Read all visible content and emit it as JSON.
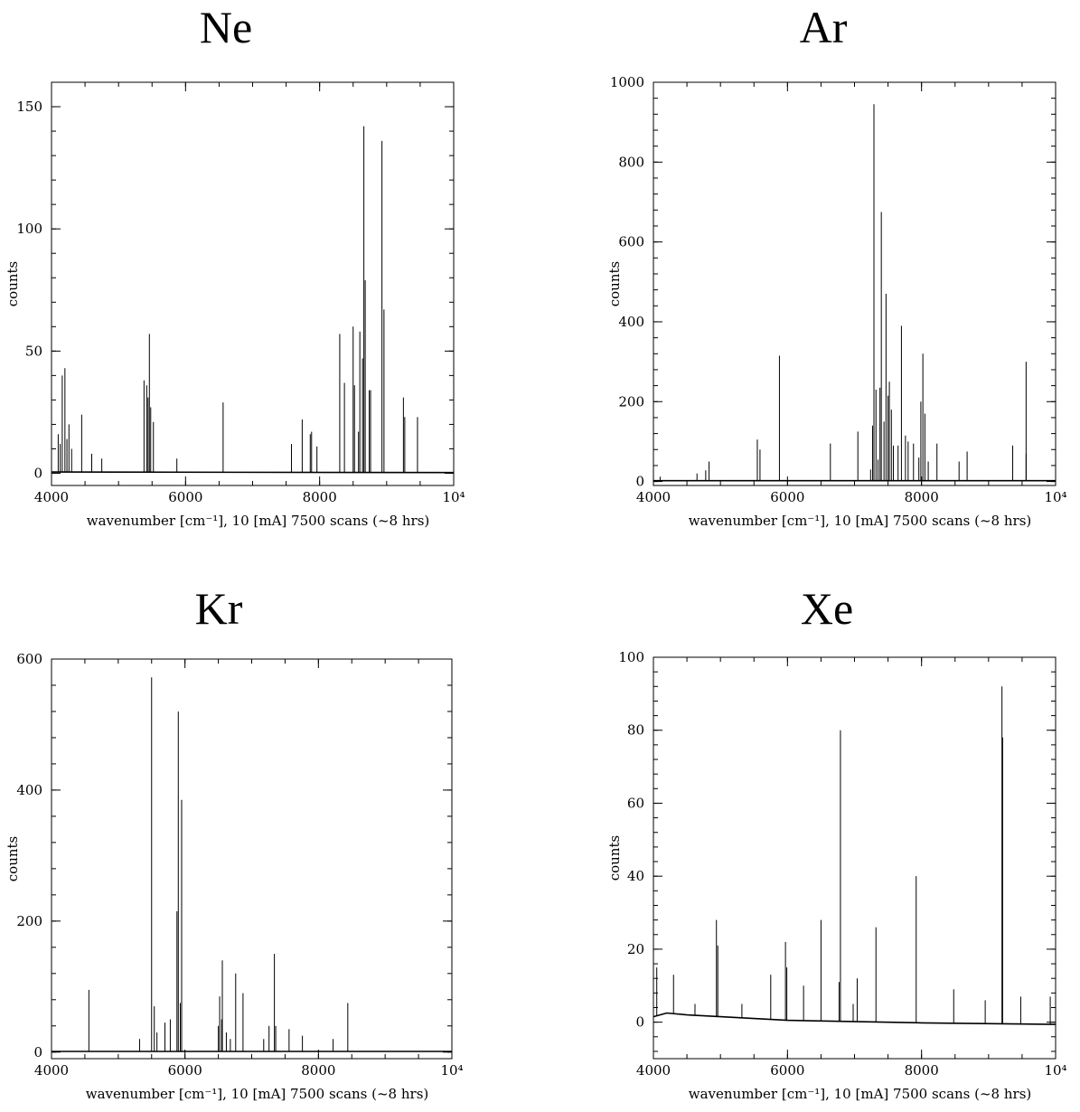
{
  "chart_data": [
    {
      "type": "line",
      "title": "Ne",
      "xlabel": "wavenumber [cm⁻¹], 10 [mA] 7500 scans (~8 hrs)",
      "ylabel": "counts",
      "xlim": [
        4000,
        10000
      ],
      "ylim": [
        -5,
        160
      ],
      "x_ticks": [
        4000,
        6000,
        8000,
        10000
      ],
      "x_tick_labels": [
        "4000",
        "6000",
        "8000",
        "10⁴"
      ],
      "y_ticks": [
        0,
        50,
        100,
        150
      ],
      "y_tick_labels": [
        "0",
        "50",
        "100",
        "150"
      ],
      "baseline": [
        [
          4000,
          0.5
        ],
        [
          10000,
          0.3
        ]
      ],
      "lines": [
        [
          4100,
          16
        ],
        [
          4130,
          12
        ],
        [
          4160,
          40
        ],
        [
          4200,
          43
        ],
        [
          4230,
          14
        ],
        [
          4260,
          20
        ],
        [
          4300,
          10
        ],
        [
          4450,
          24
        ],
        [
          4600,
          8
        ],
        [
          4750,
          6
        ],
        [
          5380,
          38
        ],
        [
          5420,
          36
        ],
        [
          5440,
          31
        ],
        [
          5460,
          57
        ],
        [
          5480,
          27
        ],
        [
          5520,
          21
        ],
        [
          5870,
          6
        ],
        [
          6560,
          29
        ],
        [
          7580,
          12
        ],
        [
          7740,
          22
        ],
        [
          7860,
          16
        ],
        [
          7880,
          17
        ],
        [
          7960,
          11
        ],
        [
          8300,
          57
        ],
        [
          8370,
          37
        ],
        [
          8500,
          60
        ],
        [
          8520,
          36
        ],
        [
          8580,
          17
        ],
        [
          8600,
          58
        ],
        [
          8640,
          47
        ],
        [
          8660,
          142
        ],
        [
          8680,
          79
        ],
        [
          8740,
          34
        ],
        [
          8760,
          34
        ],
        [
          8930,
          136
        ],
        [
          8960,
          67
        ],
        [
          9250,
          31
        ],
        [
          9270,
          23
        ],
        [
          9460,
          23
        ]
      ],
      "grid": false
    },
    {
      "type": "line",
      "title": "Ar",
      "xlabel": "wavenumber [cm⁻¹], 10 [mA] 7500 scans (~8 hrs)",
      "ylabel": "counts",
      "xlim": [
        4000,
        10000
      ],
      "ylim": [
        -10,
        1000
      ],
      "x_ticks": [
        4000,
        6000,
        8000,
        10000
      ],
      "x_tick_labels": [
        "4000",
        "6000",
        "8000",
        "10⁴"
      ],
      "y_ticks": [
        0,
        200,
        400,
        600,
        800,
        1000
      ],
      "y_tick_labels": [
        "0",
        "200",
        "400",
        "600",
        "800",
        "1000"
      ],
      "baseline": [
        [
          4000,
          2
        ],
        [
          10000,
          2
        ]
      ],
      "lines": [
        [
          4100,
          12
        ],
        [
          4650,
          20
        ],
        [
          4780,
          28
        ],
        [
          4830,
          50
        ],
        [
          5550,
          105
        ],
        [
          5590,
          80
        ],
        [
          5880,
          315
        ],
        [
          6640,
          95
        ],
        [
          7050,
          125
        ],
        [
          7240,
          30
        ],
        [
          7270,
          140
        ],
        [
          7290,
          945
        ],
        [
          7320,
          230
        ],
        [
          7350,
          55
        ],
        [
          7380,
          235
        ],
        [
          7400,
          675
        ],
        [
          7440,
          150
        ],
        [
          7470,
          470
        ],
        [
          7500,
          215
        ],
        [
          7520,
          250
        ],
        [
          7550,
          180
        ],
        [
          7580,
          90
        ],
        [
          7650,
          90
        ],
        [
          7700,
          390
        ],
        [
          7760,
          115
        ],
        [
          7800,
          100
        ],
        [
          7880,
          95
        ],
        [
          7960,
          60
        ],
        [
          7990,
          200
        ],
        [
          8020,
          320
        ],
        [
          8050,
          170
        ],
        [
          8100,
          50
        ],
        [
          8230,
          95
        ],
        [
          8560,
          50
        ],
        [
          8680,
          75
        ],
        [
          9360,
          90
        ],
        [
          9560,
          70
        ],
        [
          9560,
          300
        ]
      ],
      "grid": false
    },
    {
      "type": "line",
      "title": "Kr",
      "xlabel": "wavenumber [cm⁻¹], 10 [mA] 7500 scans (~8 hrs)",
      "ylabel": "counts",
      "xlim": [
        4000,
        10000
      ],
      "ylim": [
        -10,
        600
      ],
      "x_ticks": [
        4000,
        6000,
        8000,
        10000
      ],
      "x_tick_labels": [
        "4000",
        "6000",
        "8000",
        "10⁴"
      ],
      "y_ticks": [
        0,
        200,
        400,
        600
      ],
      "y_tick_labels": [
        "0",
        "200",
        "400",
        "600"
      ],
      "baseline": [
        [
          4000,
          1
        ],
        [
          10000,
          1
        ]
      ],
      "lines": [
        [
          4560,
          95
        ],
        [
          5320,
          20
        ],
        [
          5500,
          572
        ],
        [
          5540,
          70
        ],
        [
          5580,
          30
        ],
        [
          5700,
          45
        ],
        [
          5780,
          50
        ],
        [
          5880,
          215
        ],
        [
          5900,
          520
        ],
        [
          5930,
          75
        ],
        [
          5950,
          385
        ],
        [
          6500,
          40
        ],
        [
          6520,
          85
        ],
        [
          6550,
          50
        ],
        [
          6560,
          140
        ],
        [
          6620,
          30
        ],
        [
          6680,
          20
        ],
        [
          6760,
          120
        ],
        [
          6870,
          90
        ],
        [
          7180,
          20
        ],
        [
          7260,
          40
        ],
        [
          7340,
          150
        ],
        [
          7360,
          40
        ],
        [
          7560,
          35
        ],
        [
          7760,
          25
        ],
        [
          8220,
          20
        ],
        [
          8440,
          75
        ]
      ],
      "grid": false
    },
    {
      "type": "line",
      "title": "Xe",
      "xlabel": "wavenumber [cm⁻¹], 10 [mA] 7500 scans (~8 hrs)",
      "ylabel": "counts",
      "xlim": [
        4000,
        10000
      ],
      "ylim": [
        -10,
        100
      ],
      "x_ticks": [
        4000,
        6000,
        8000,
        10000
      ],
      "x_tick_labels": [
        "4000",
        "6000",
        "8000",
        "10⁴"
      ],
      "y_ticks": [
        0,
        20,
        40,
        60,
        80,
        100
      ],
      "y_tick_labels": [
        "0",
        "20",
        "40",
        "60",
        "80",
        "100"
      ],
      "baseline": [
        [
          4000,
          1.5
        ],
        [
          4200,
          2.5
        ],
        [
          4500,
          2
        ],
        [
          5000,
          1.5
        ],
        [
          6000,
          0.5
        ],
        [
          8000,
          -0.2
        ],
        [
          10000,
          -0.6
        ]
      ],
      "lines": [
        [
          4050,
          15
        ],
        [
          4300,
          13
        ],
        [
          4620,
          5
        ],
        [
          4940,
          28
        ],
        [
          4960,
          21
        ],
        [
          5320,
          5
        ],
        [
          5750,
          13
        ],
        [
          5970,
          22
        ],
        [
          5990,
          15
        ],
        [
          6240,
          10
        ],
        [
          6500,
          28
        ],
        [
          6770,
          11
        ],
        [
          6790,
          80
        ],
        [
          6980,
          5
        ],
        [
          7040,
          12
        ],
        [
          7320,
          26
        ],
        [
          7920,
          40
        ],
        [
          8480,
          9
        ],
        [
          8950,
          6
        ],
        [
          9200,
          92
        ],
        [
          9210,
          78
        ],
        [
          9480,
          7
        ],
        [
          9920,
          7
        ]
      ],
      "grid": false
    }
  ]
}
